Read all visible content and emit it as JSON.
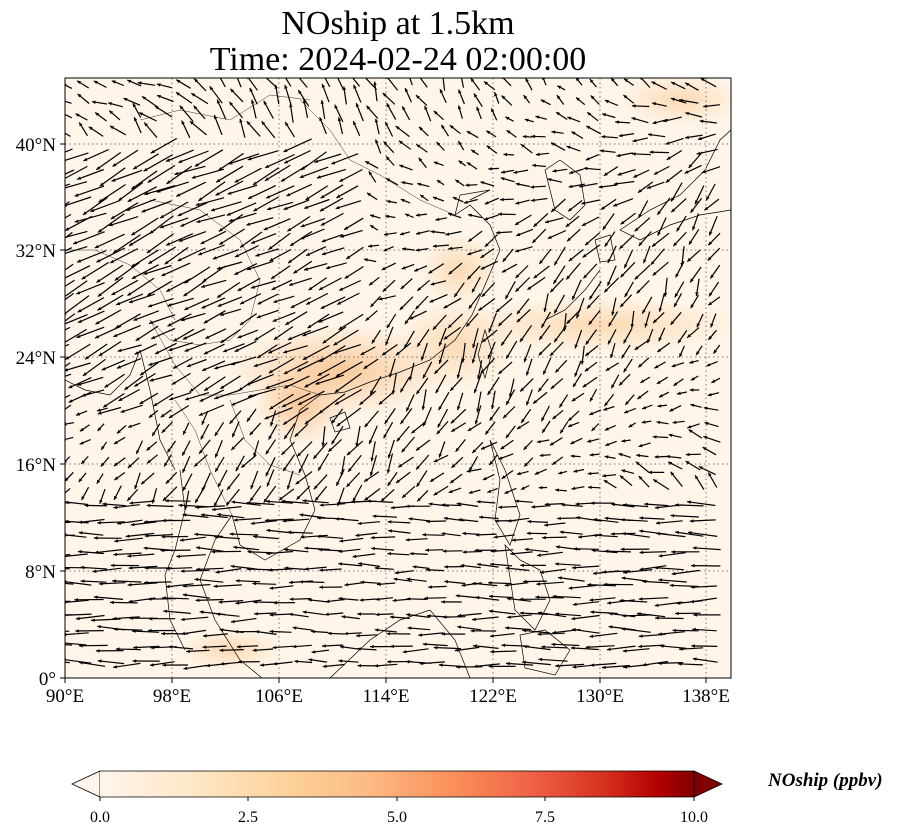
{
  "figure": {
    "title_line1": "NOship at 1.5km",
    "title_line2": "Time: 2024-02-24 02:00:00"
  },
  "map": {
    "lon_range": [
      90,
      139.8
    ],
    "lat_range": [
      0,
      45
    ],
    "lon_ticks": [
      {
        "value": 90,
        "label": "90°E"
      },
      {
        "value": 98,
        "label": "98°E"
      },
      {
        "value": 106,
        "label": "106°E"
      },
      {
        "value": 114,
        "label": "114°E"
      },
      {
        "value": 122,
        "label": "122°E"
      },
      {
        "value": 130,
        "label": "130°E"
      },
      {
        "value": 138,
        "label": "138°E"
      }
    ],
    "lat_ticks": [
      {
        "value": 0,
        "label": "0°"
      },
      {
        "value": 8,
        "label": "8°N"
      },
      {
        "value": 16,
        "label": "16°N"
      },
      {
        "value": 24,
        "label": "24°N"
      },
      {
        "value": 32,
        "label": "32°N"
      },
      {
        "value": 40,
        "label": "40°N"
      }
    ],
    "gridlines": true,
    "background_color": "#fff5e8",
    "wind_vectors": true
  },
  "colorbar": {
    "label": "NOship (ppbv)",
    "min": 0.0,
    "max": 10.0,
    "ticks": [
      {
        "value": 0.0,
        "label": "0.0"
      },
      {
        "value": 2.5,
        "label": "2.5"
      },
      {
        "value": 5.0,
        "label": "5.0"
      },
      {
        "value": 7.5,
        "label": "7.5"
      },
      {
        "value": 10.0,
        "label": "10.0"
      }
    ],
    "extend": "both",
    "colors": [
      "#fff5eb",
      "#fdd49e",
      "#fdbb84",
      "#fc8d59",
      "#ef6548",
      "#d7301f",
      "#b30000",
      "#7f0000"
    ]
  }
}
